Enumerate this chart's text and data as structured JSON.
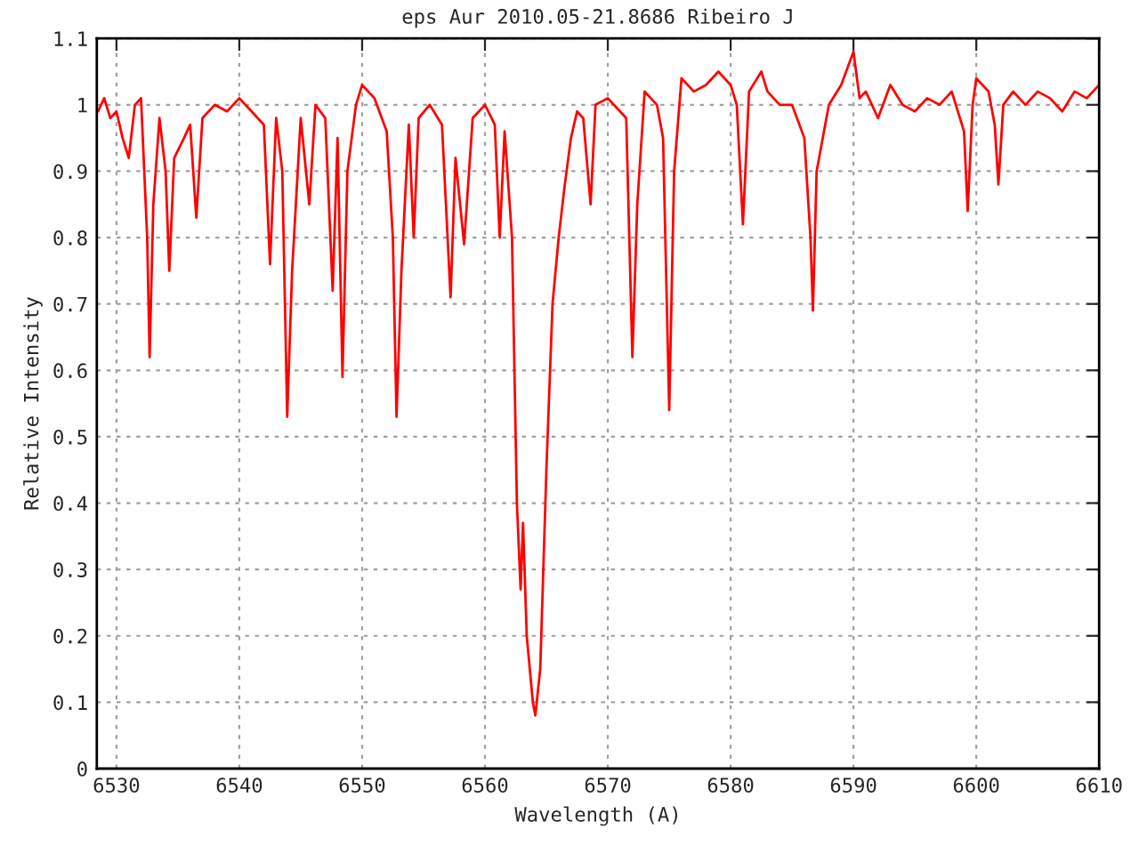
{
  "chart_data": {
    "type": "line",
    "title": "eps Aur 2010.05-21.8686 Ribeiro J",
    "xlabel": "Wavelength (A)",
    "ylabel": "Relative Intensity",
    "x": [
      6528.5,
      6529,
      6529.5,
      6530,
      6530.5,
      6531,
      6531.5,
      6532,
      6532.5,
      6532.7,
      6533,
      6533.5,
      6534,
      6534.3,
      6534.7,
      6535.5,
      6536,
      6536.5,
      6537,
      6538,
      6539,
      6540,
      6541,
      6542,
      6542.5,
      6543,
      6543.5,
      6543.9,
      6544.3,
      6545,
      6545.7,
      6546.2,
      6547,
      6547.6,
      6548,
      6548.4,
      6548.8,
      6549.5,
      6550,
      6551,
      6552,
      6552.5,
      6552.8,
      6553.2,
      6553.8,
      6554.2,
      6554.6,
      6555.5,
      6556.5,
      6557.2,
      6557.6,
      6558.3,
      6559,
      6560,
      6560.8,
      6561.2,
      6561.6,
      6562.2,
      6562.6,
      6562.9,
      6563.1,
      6563.4,
      6563.9,
      6564.1,
      6564.5,
      6565,
      6565.5,
      6566,
      6566.5,
      6567,
      6567.5,
      6568,
      6568.6,
      6569,
      6570,
      6571,
      6571.5,
      6572,
      6572.4,
      6573,
      6574,
      6574.5,
      6575,
      6575.4,
      6576,
      6577,
      6578,
      6579,
      6580,
      6580.5,
      6581,
      6581.5,
      6582.5,
      6583,
      6584,
      6585,
      6586,
      6586.5,
      6586.7,
      6587,
      6588,
      6589,
      6590,
      6590.5,
      6591,
      6592,
      6593,
      6594,
      6595,
      6596,
      6597,
      6598,
      6599,
      6599.3,
      6599.7,
      6600,
      6601,
      6601.5,
      6601.8,
      6602.2,
      6603,
      6604,
      6605,
      6606,
      6607,
      6608,
      6609,
      6610
    ],
    "series": [
      {
        "color": "#ff0000",
        "values": [
          0.99,
          1.01,
          0.98,
          0.99,
          0.95,
          0.92,
          1.0,
          1.01,
          0.8,
          0.62,
          0.85,
          0.98,
          0.9,
          0.75,
          0.92,
          0.95,
          0.97,
          0.83,
          0.98,
          1.0,
          0.99,
          1.01,
          0.99,
          0.97,
          0.76,
          0.98,
          0.9,
          0.53,
          0.75,
          0.98,
          0.85,
          1.0,
          0.98,
          0.72,
          0.95,
          0.59,
          0.9,
          1.0,
          1.03,
          1.01,
          0.96,
          0.8,
          0.53,
          0.75,
          0.97,
          0.8,
          0.98,
          1.0,
          0.97,
          0.71,
          0.92,
          0.79,
          0.98,
          1.0,
          0.97,
          0.8,
          0.96,
          0.8,
          0.4,
          0.27,
          0.37,
          0.2,
          0.1,
          0.08,
          0.15,
          0.45,
          0.7,
          0.8,
          0.88,
          0.95,
          0.99,
          0.98,
          0.85,
          1.0,
          1.01,
          0.99,
          0.98,
          0.62,
          0.85,
          1.02,
          1.0,
          0.95,
          0.54,
          0.9,
          1.04,
          1.02,
          1.03,
          1.05,
          1.03,
          1.0,
          0.82,
          1.02,
          1.05,
          1.02,
          1.0,
          1.0,
          0.95,
          0.8,
          0.69,
          0.9,
          1.0,
          1.03,
          1.08,
          1.01,
          1.02,
          0.98,
          1.03,
          1.0,
          0.99,
          1.01,
          1.0,
          1.02,
          0.96,
          0.84,
          1.0,
          1.04,
          1.02,
          0.97,
          0.88,
          1.0,
          1.02,
          1.0,
          1.02,
          1.01,
          0.99,
          1.02,
          1.01,
          1.03
        ]
      }
    ],
    "xlim": [
      6528.4,
      6610
    ],
    "xticks": [
      6530,
      6540,
      6550,
      6560,
      6570,
      6580,
      6590,
      6600,
      6610
    ],
    "ylim": [
      0,
      1.1
    ],
    "yticks": [
      0,
      0.1,
      0.2,
      0.3,
      0.4,
      0.5,
      0.6,
      0.7,
      0.8,
      0.9,
      1,
      1.1
    ],
    "grid": true,
    "line_style": "solid",
    "marker": "none"
  }
}
